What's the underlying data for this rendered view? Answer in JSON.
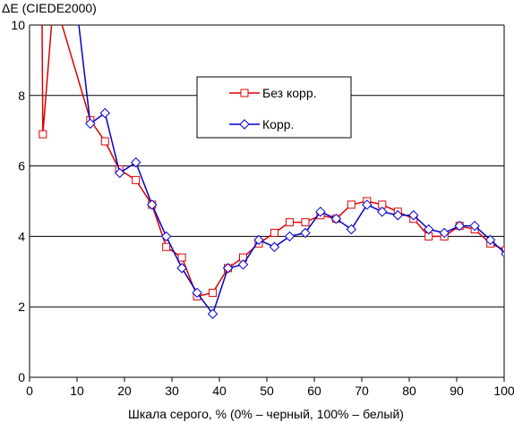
{
  "chart_data": {
    "type": "line",
    "title": "",
    "ylabel": "ΔE (CIEDE2000)",
    "xlabel": "Шкала серого, % (0% – черный, 100% – белый)",
    "xlim": [
      0,
      100
    ],
    "ylim": [
      0,
      10
    ],
    "x_ticks": [
      "0",
      "10",
      "20",
      "30",
      "40",
      "50",
      "60",
      "70",
      "80",
      "90",
      "100"
    ],
    "y_ticks": [
      "0",
      "2",
      "4",
      "6",
      "8",
      "10"
    ],
    "grid": "horizontal",
    "legend_position": "top-center",
    "series": [
      {
        "name": "Без корр.",
        "color": "#e00000",
        "marker": "square",
        "points": [
          [
            2.6,
            10.8
          ],
          [
            2.8,
            6.9
          ],
          [
            5.1,
            10.8
          ],
          [
            12.8,
            7.3
          ],
          [
            15.9,
            6.7
          ],
          [
            18.9,
            5.9
          ],
          [
            22.4,
            5.6
          ],
          [
            25.8,
            4.9
          ],
          [
            28.8,
            3.7
          ],
          [
            32.1,
            3.4
          ],
          [
            35.3,
            2.3
          ],
          [
            38.6,
            2.4
          ],
          [
            41.8,
            3.1
          ],
          [
            45.0,
            3.4
          ],
          [
            48.3,
            3.8
          ],
          [
            51.6,
            4.1
          ],
          [
            54.8,
            4.4
          ],
          [
            58.1,
            4.4
          ],
          [
            61.3,
            4.6
          ],
          [
            64.6,
            4.5
          ],
          [
            67.8,
            4.9
          ],
          [
            71.1,
            5.0
          ],
          [
            74.3,
            4.9
          ],
          [
            77.6,
            4.7
          ],
          [
            80.9,
            4.5
          ],
          [
            84.1,
            4.0
          ],
          [
            87.4,
            4.0
          ],
          [
            90.6,
            4.3
          ],
          [
            93.8,
            4.2
          ],
          [
            97.1,
            3.8
          ],
          [
            100.4,
            3.6
          ]
        ]
      },
      {
        "name": "Корр.",
        "color": "#0000cc",
        "marker": "diamond",
        "points": [
          [
            9.7,
            10.8
          ],
          [
            12.8,
            7.2
          ],
          [
            15.9,
            7.5
          ],
          [
            19.0,
            5.8
          ],
          [
            22.4,
            6.1
          ],
          [
            25.8,
            4.9
          ],
          [
            28.8,
            4.0
          ],
          [
            32.1,
            3.1
          ],
          [
            35.3,
            2.4
          ],
          [
            38.6,
            1.8
          ],
          [
            41.8,
            3.1
          ],
          [
            45.0,
            3.2
          ],
          [
            48.3,
            3.9
          ],
          [
            51.6,
            3.7
          ],
          [
            54.8,
            4.0
          ],
          [
            58.1,
            4.1
          ],
          [
            61.3,
            4.7
          ],
          [
            64.6,
            4.5
          ],
          [
            67.8,
            4.2
          ],
          [
            71.1,
            4.9
          ],
          [
            74.3,
            4.7
          ],
          [
            77.6,
            4.6
          ],
          [
            80.9,
            4.6
          ],
          [
            84.1,
            4.2
          ],
          [
            87.4,
            4.1
          ],
          [
            90.6,
            4.3
          ],
          [
            93.8,
            4.3
          ],
          [
            97.1,
            3.9
          ],
          [
            100.4,
            3.5
          ]
        ]
      }
    ]
  }
}
